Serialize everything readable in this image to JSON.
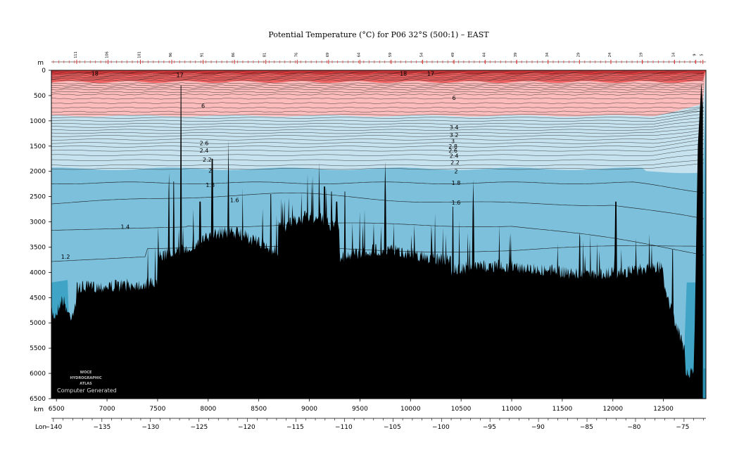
{
  "chart_data": {
    "type": "contour-section",
    "title": "Potential Temperature (°C) for P06 32°S (500:1) – EAST",
    "y_axis_label": "m",
    "x_axis_label": "km",
    "lon_axis_label": "Lon",
    "ylim": [
      6500,
      0
    ],
    "xlim": [
      6450,
      12920
    ],
    "y_ticks": [
      0,
      500,
      1000,
      1500,
      2000,
      2500,
      3000,
      3500,
      4000,
      4500,
      5000,
      5500,
      6000,
      6500
    ],
    "x_ticks": [
      6500,
      7000,
      7500,
      8000,
      8500,
      9000,
      9500,
      10000,
      10500,
      11000,
      11500,
      12000,
      12500
    ],
    "lon_ticks": [
      {
        "lon": -140,
        "label": "−140",
        "km": 6470
      },
      {
        "lon": -135,
        "label": "−135",
        "km": 6950
      },
      {
        "lon": -130,
        "label": "−130",
        "km": 7430
      },
      {
        "lon": -125,
        "label": "−125",
        "km": 7910
      },
      {
        "lon": -120,
        "label": "−120",
        "km": 8380
      },
      {
        "lon": -115,
        "label": "−115",
        "km": 8860
      },
      {
        "lon": -110,
        "label": "−110",
        "km": 9340
      },
      {
        "lon": -105,
        "label": "−105",
        "km": 9820
      },
      {
        "lon": -100,
        "label": "−100",
        "km": 10300
      },
      {
        "lon": -95,
        "label": "−95",
        "km": 10780
      },
      {
        "lon": -90,
        "label": "−90",
        "km": 11260
      },
      {
        "lon": -85,
        "label": "−85",
        "km": 11740
      },
      {
        "lon": -80,
        "label": "−80",
        "km": 12210
      },
      {
        "lon": -75,
        "label": "−75",
        "km": 12690
      }
    ],
    "stations": [
      {
        "label": "111",
        "km": 6700
      },
      {
        "label": "106",
        "km": 7010
      },
      {
        "label": "101",
        "km": 7330
      },
      {
        "label": "96",
        "km": 7640
      },
      {
        "label": "91",
        "km": 7950
      },
      {
        "label": "86",
        "km": 8260
      },
      {
        "label": "81",
        "km": 8570
      },
      {
        "label": "76",
        "km": 8880
      },
      {
        "label": "69",
        "km": 9190
      },
      {
        "label": "64",
        "km": 9500
      },
      {
        "label": "59",
        "km": 9810
      },
      {
        "label": "54",
        "km": 10120
      },
      {
        "label": "49",
        "km": 10430
      },
      {
        "label": "44",
        "km": 10740
      },
      {
        "label": "39",
        "km": 11050
      },
      {
        "label": "34",
        "km": 11360
      },
      {
        "label": "29",
        "km": 11670
      },
      {
        "label": "24",
        "km": 11980
      },
      {
        "label": "19",
        "km": 12290
      },
      {
        "label": "14",
        "km": 12610
      },
      {
        "label": "9",
        "km": 12820
      },
      {
        "label": "5",
        "km": 12890
      }
    ],
    "temperature_bands": [
      {
        "min": 17,
        "max": 30,
        "color": "#e23a3c"
      },
      {
        "min": 10,
        "max": 17,
        "color": "#f06262"
      },
      {
        "min": 5,
        "max": 10,
        "color": "#fcbcbc"
      },
      {
        "min": 2,
        "max": 5,
        "color": "#c5e2ee"
      },
      {
        "min": 1.2,
        "max": 2,
        "color": "#7cc0dc"
      },
      {
        "min": 0,
        "max": 1.2,
        "color": "#3fa4c6"
      }
    ],
    "contour_labels": [
      {
        "value": "18",
        "km": 6880,
        "depth": 60
      },
      {
        "value": "17",
        "km": 7720,
        "depth": 90
      },
      {
        "value": "18",
        "km": 9930,
        "depth": 60
      },
      {
        "value": "17",
        "km": 10200,
        "depth": 60
      },
      {
        "value": "6",
        "km": 7950,
        "depth": 700
      },
      {
        "value": "6",
        "km": 10430,
        "depth": 540
      },
      {
        "value": "3.4",
        "km": 10430,
        "depth": 1130
      },
      {
        "value": "3.2",
        "km": 10430,
        "depth": 1280
      },
      {
        "value": "3",
        "km": 10420,
        "depth": 1400
      },
      {
        "value": "2.8",
        "km": 10420,
        "depth": 1500
      },
      {
        "value": "2.6",
        "km": 10420,
        "depth": 1590
      },
      {
        "value": "2.4",
        "km": 10430,
        "depth": 1690
      },
      {
        "value": "2.2",
        "km": 10440,
        "depth": 1820
      },
      {
        "value": "2",
        "km": 10450,
        "depth": 2000
      },
      {
        "value": "1.8",
        "km": 10450,
        "depth": 2230
      },
      {
        "value": "1.6",
        "km": 10450,
        "depth": 2620
      },
      {
        "value": "2.6",
        "km": 7960,
        "depth": 1440
      },
      {
        "value": "2.4",
        "km": 7960,
        "depth": 1590
      },
      {
        "value": "2.2",
        "km": 7990,
        "depth": 1770
      },
      {
        "value": "2",
        "km": 8020,
        "depth": 1980
      },
      {
        "value": "1.8",
        "km": 8020,
        "depth": 2270
      },
      {
        "value": "1.6",
        "km": 8260,
        "depth": 2570
      },
      {
        "value": "1.4",
        "km": 7180,
        "depth": 3100
      },
      {
        "value": "1.2",
        "km": 6590,
        "depth": 3690
      }
    ],
    "watermark": [
      "WOCE",
      "HYDROGRAPHIC",
      "ATLAS"
    ],
    "watermark_note": "Computer Generated"
  }
}
